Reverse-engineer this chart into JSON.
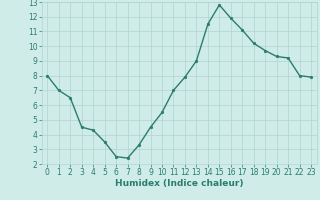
{
  "x": [
    0,
    1,
    2,
    3,
    4,
    5,
    6,
    7,
    8,
    9,
    10,
    11,
    12,
    13,
    14,
    15,
    16,
    17,
    18,
    19,
    20,
    21,
    22,
    23
  ],
  "y": [
    8.0,
    7.0,
    6.5,
    4.5,
    4.3,
    3.5,
    2.5,
    2.4,
    3.3,
    4.5,
    5.5,
    7.0,
    7.9,
    9.0,
    11.5,
    12.8,
    11.9,
    11.1,
    10.2,
    9.7,
    9.3,
    9.2,
    8.0,
    7.9
  ],
  "xlabel": "Humidex (Indice chaleur)",
  "ylim": [
    2,
    13
  ],
  "xlim": [
    -0.5,
    23.5
  ],
  "yticks": [
    2,
    3,
    4,
    5,
    6,
    7,
    8,
    9,
    10,
    11,
    12,
    13
  ],
  "xticks": [
    0,
    1,
    2,
    3,
    4,
    5,
    6,
    7,
    8,
    9,
    10,
    11,
    12,
    13,
    14,
    15,
    16,
    17,
    18,
    19,
    20,
    21,
    22,
    23
  ],
  "line_color": "#2a7d6e",
  "marker_color": "#2a7d6e",
  "bg_color": "#d0ece8",
  "grid_color": "#b0d4ce",
  "marker": "o",
  "markersize": 2.0,
  "linewidth": 1.0,
  "xlabel_fontsize": 6.5,
  "tick_fontsize": 5.5,
  "label_color": "#2a7d6e"
}
